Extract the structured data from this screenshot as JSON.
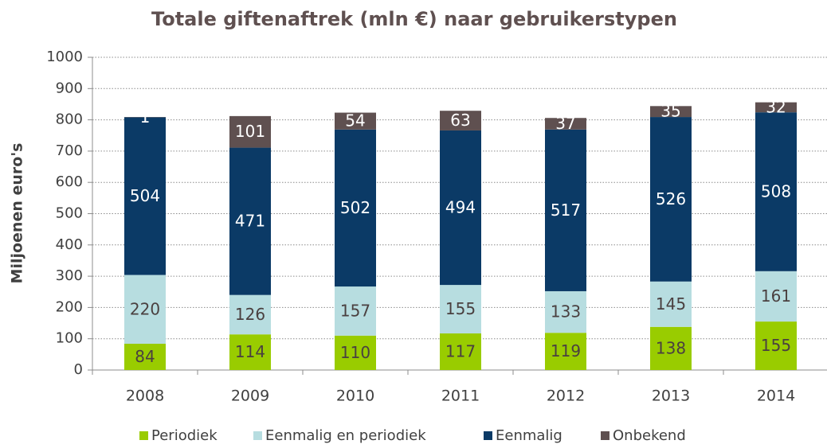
{
  "chart_data": {
    "type": "stacked_bar",
    "title": "Totale giftenaftrek (mln €) naar gebruikerstypen",
    "ylabel": "Miljoenen euro's",
    "categories": [
      "2008",
      "2009",
      "2010",
      "2011",
      "2012",
      "2013",
      "2014"
    ],
    "series": [
      {
        "name": "Periodiek",
        "color": "#99cc00",
        "values": [
          84,
          114,
          110,
          117,
          119,
          138,
          155
        ]
      },
      {
        "name": "Eenmalig en periodiek",
        "color": "#b7dde0",
        "values": [
          220,
          126,
          157,
          155,
          133,
          145,
          161
        ]
      },
      {
        "name": "Eenmalig",
        "color": "#0b3a66",
        "values": [
          504,
          471,
          502,
          494,
          517,
          526,
          508
        ]
      },
      {
        "name": "Onbekend",
        "color": "#5f5050",
        "values": [
          1,
          101,
          54,
          63,
          37,
          35,
          32
        ]
      }
    ],
    "ylim": [
      0,
      1000
    ],
    "yticks": [
      0,
      100,
      200,
      300,
      400,
      500,
      600,
      700,
      800,
      900,
      1000
    ],
    "grid": true,
    "legend": "bottom"
  }
}
